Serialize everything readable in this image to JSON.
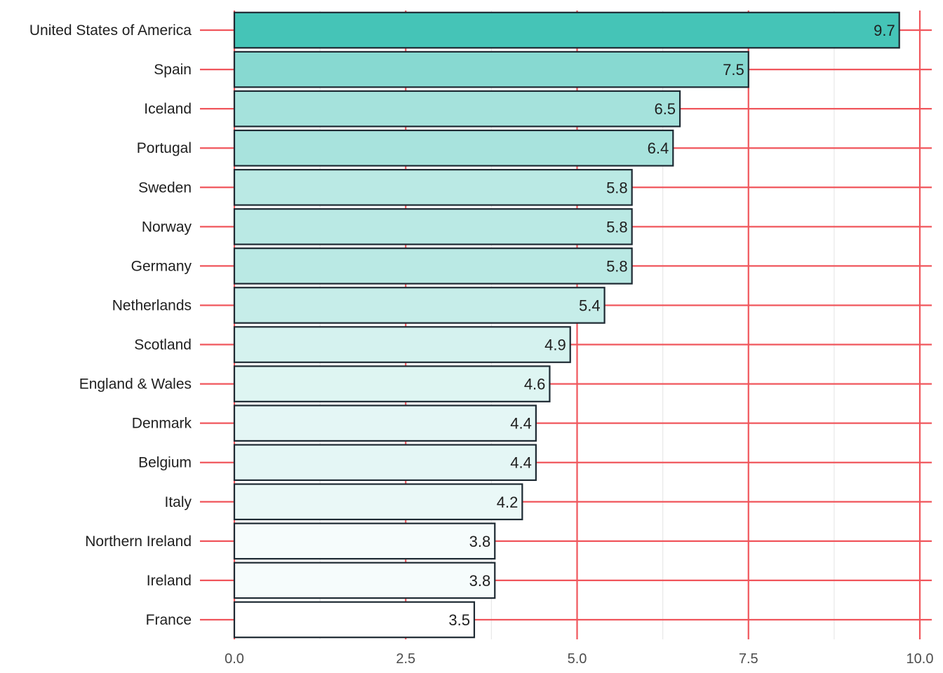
{
  "chart_data": {
    "type": "bar",
    "orientation": "horizontal",
    "categories": [
      "United States of America",
      "Spain",
      "Iceland",
      "Portugal",
      "Sweden",
      "Norway",
      "Germany",
      "Netherlands",
      "Scotland",
      "England & Wales",
      "Denmark",
      "Belgium",
      "Italy",
      "Northern Ireland",
      "Ireland",
      "France"
    ],
    "values": [
      9.7,
      7.5,
      6.5,
      6.4,
      5.8,
      5.8,
      5.8,
      5.4,
      4.9,
      4.6,
      4.4,
      4.4,
      4.2,
      3.8,
      3.8,
      3.5
    ],
    "value_labels": [
      "9.7",
      "7.5",
      "6.5",
      "6.4",
      "5.8",
      "5.8",
      "5.8",
      "5.4",
      "4.9",
      "4.6",
      "4.4",
      "4.4",
      "4.2",
      "3.8",
      "3.8",
      "3.5"
    ],
    "xlim": [
      0,
      10
    ],
    "x_ticks": [
      0,
      2.5,
      5,
      7.5,
      10
    ],
    "x_tick_labels": [
      "0.0",
      "2.5",
      "5.0",
      "7.5",
      "10.0"
    ],
    "title": "",
    "xlabel": "",
    "ylabel": "",
    "grid": true,
    "legend": "none",
    "colors": {
      "fill_low": "#ffffff",
      "fill_high": "#45c4b7",
      "bar_outline": "#1e2a33",
      "major_grid": "#f0565c",
      "minor_grid": "#e8e8e8"
    }
  }
}
